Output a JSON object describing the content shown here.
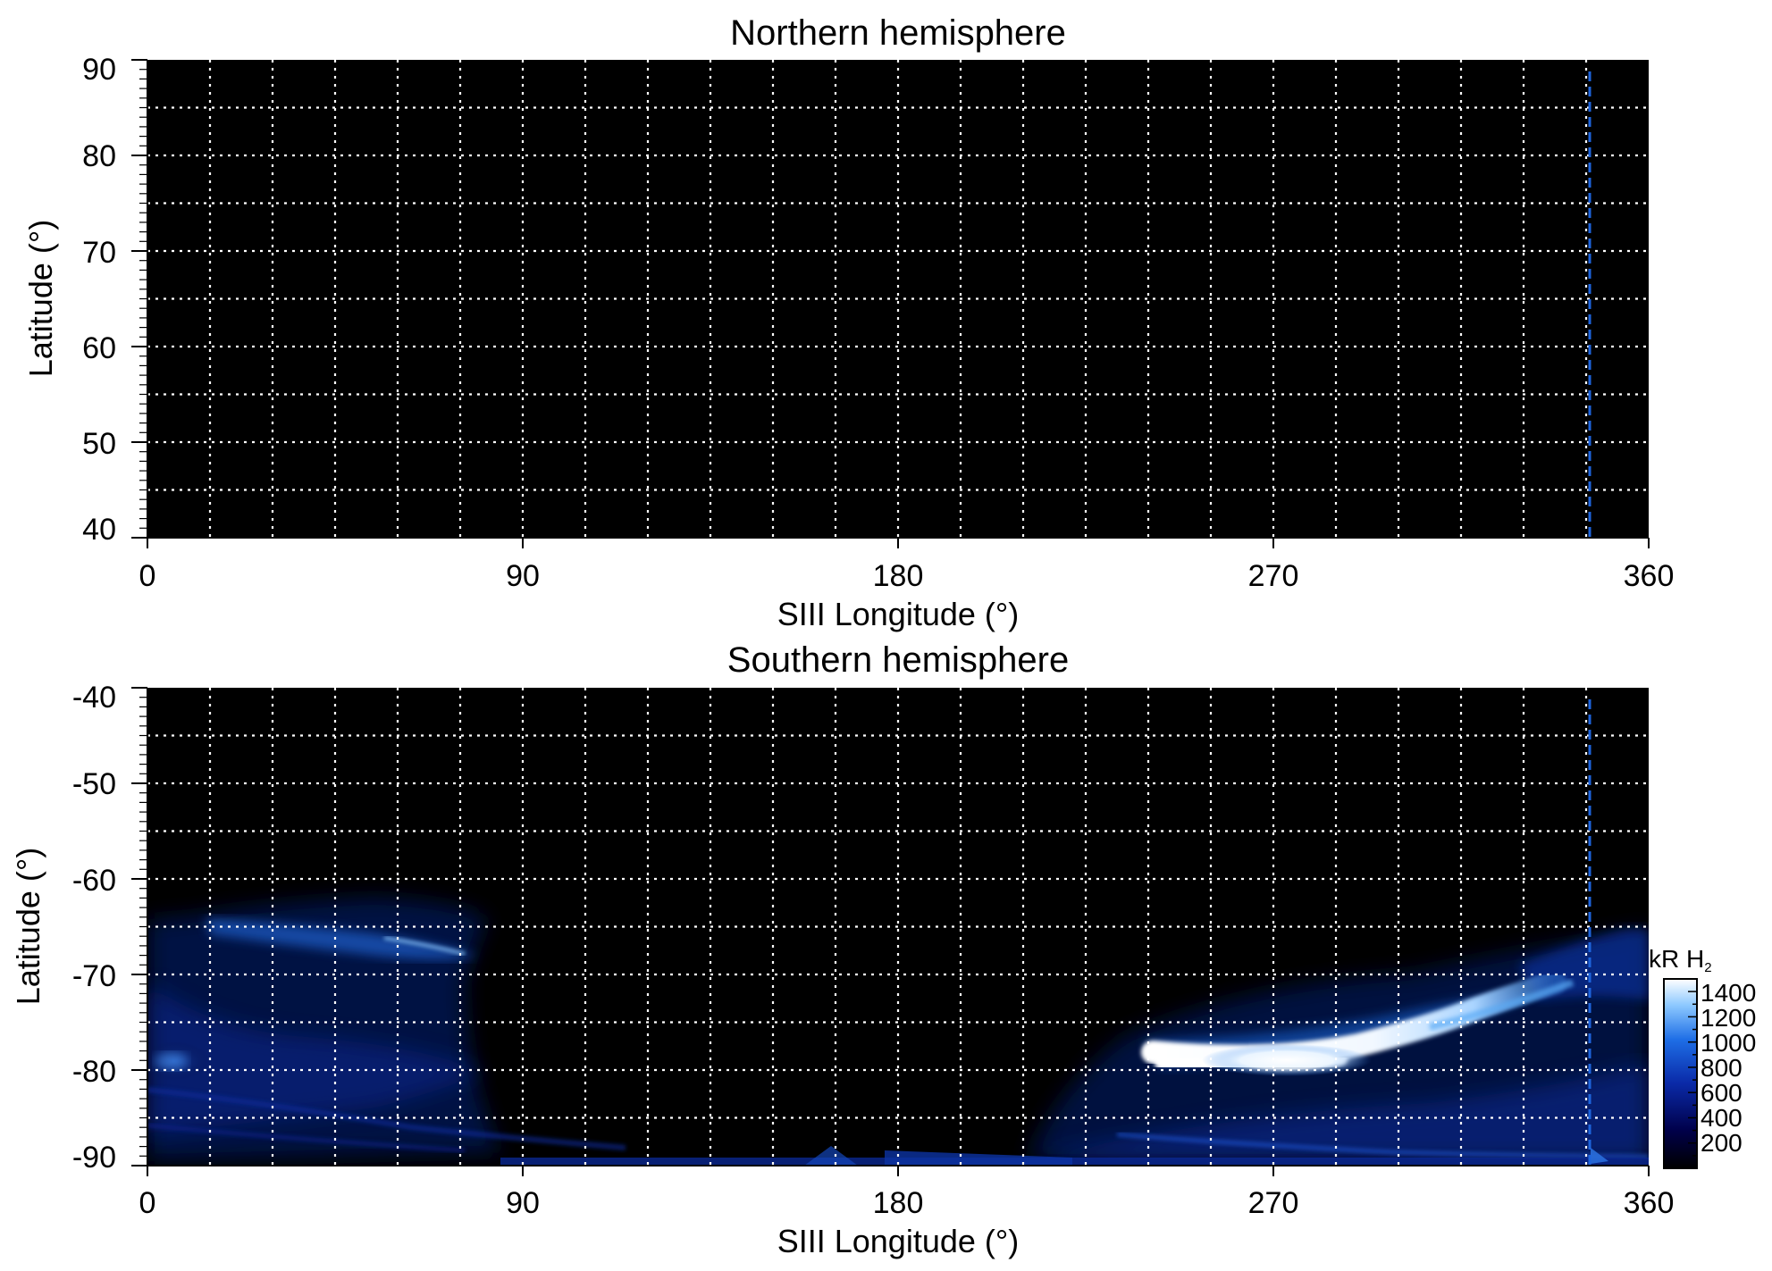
{
  "chart_data": [
    {
      "type": "heatmap",
      "title": "Northern hemisphere",
      "xlabel": "SIII Longitude (°)",
      "ylabel": "Latitude (°)",
      "xlim": [
        0,
        360
      ],
      "ylim": [
        40,
        90
      ],
      "xticks": [
        0,
        90,
        180,
        270,
        360
      ],
      "yticks": [
        90,
        80,
        70,
        60,
        50,
        40
      ],
      "grid": true,
      "grid_x_step": 15,
      "grid_y_step": 5,
      "reference_line": {
        "longitude": 346,
        "color": "#1e64dc",
        "style": "dashed"
      },
      "background": "#000000",
      "emission": []
    },
    {
      "type": "heatmap",
      "title": "Southern hemisphere",
      "xlabel": "SIII Longitude (°)",
      "ylabel": "Latitude (°)",
      "xlim": [
        0,
        360
      ],
      "ylim": [
        -90,
        -40
      ],
      "xticks": [
        0,
        90,
        180,
        270,
        360
      ],
      "yticks": [
        -40,
        -50,
        -60,
        -70,
        -80,
        -90
      ],
      "grid": true,
      "grid_x_step": 15,
      "grid_y_step": 5,
      "reference_line": {
        "longitude": 346,
        "color": "#1e64dc",
        "style": "dashed"
      },
      "background": "#000000",
      "colorbar": {
        "label": "kR H",
        "label_subscript": "2",
        "ticks": [
          1400,
          1200,
          1000,
          800,
          600,
          400,
          200
        ],
        "range": [
          0,
          1500
        ],
        "colors": [
          "#000000",
          "#00004a",
          "#0a2aa8",
          "#1e6ee6",
          "#8cc8ff",
          "#ffffff"
        ]
      },
      "emission": [
        {
          "region": "diffuse-west",
          "lon_range": [
            0,
            80
          ],
          "lat_range": [
            -90,
            -64
          ],
          "kR": 300
        },
        {
          "region": "arc-west",
          "lon_range": [
            15,
            80
          ],
          "lat_range": [
            -69,
            -65
          ],
          "kR": 500
        },
        {
          "region": "spot-west",
          "lon_range": [
            0,
            12
          ],
          "lat_range": [
            -81,
            -77
          ],
          "kR": 650
        },
        {
          "region": "diffuse-east",
          "lon_range": [
            230,
            360
          ],
          "lat_range": [
            -90,
            -67
          ],
          "kR": 250
        },
        {
          "region": "main-oval-core",
          "lon_range": [
            245,
            300
          ],
          "lat_range": [
            -81,
            -77
          ],
          "kR": 1450
        },
        {
          "region": "main-oval-tail",
          "lon_range": [
            300,
            335
          ],
          "lat_range": [
            -78,
            -73
          ],
          "kR": 900
        },
        {
          "region": "polar-floor",
          "lon_range": [
            100,
            360
          ],
          "lat_range": [
            -90,
            -88
          ],
          "kR": 400
        }
      ]
    }
  ]
}
